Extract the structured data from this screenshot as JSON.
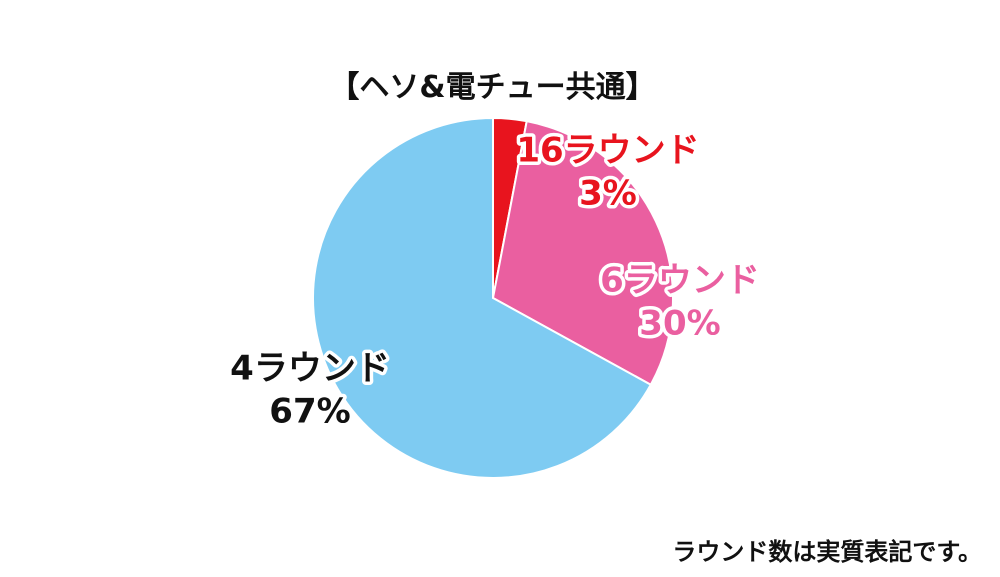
{
  "chart_data": {
    "type": "pie",
    "title": "【ヘソ&電チュー共通】",
    "slices": [
      {
        "label": "16ラウンド",
        "value": 3,
        "value_label": "3%",
        "color": "#e8141e",
        "text_color": "#e8141e"
      },
      {
        "label": "6ラウンド",
        "value": 30,
        "value_label": "30%",
        "color": "#ea5fa0",
        "text_color": "#ea5fa0"
      },
      {
        "label": "4ラウンド",
        "value": 67,
        "value_label": "67%",
        "color": "#7ecbf2",
        "text_color": "#111111"
      }
    ],
    "start_angle_deg": 0,
    "direction": "clockwise"
  },
  "footnote": "ラウンド数は実質表記です。"
}
